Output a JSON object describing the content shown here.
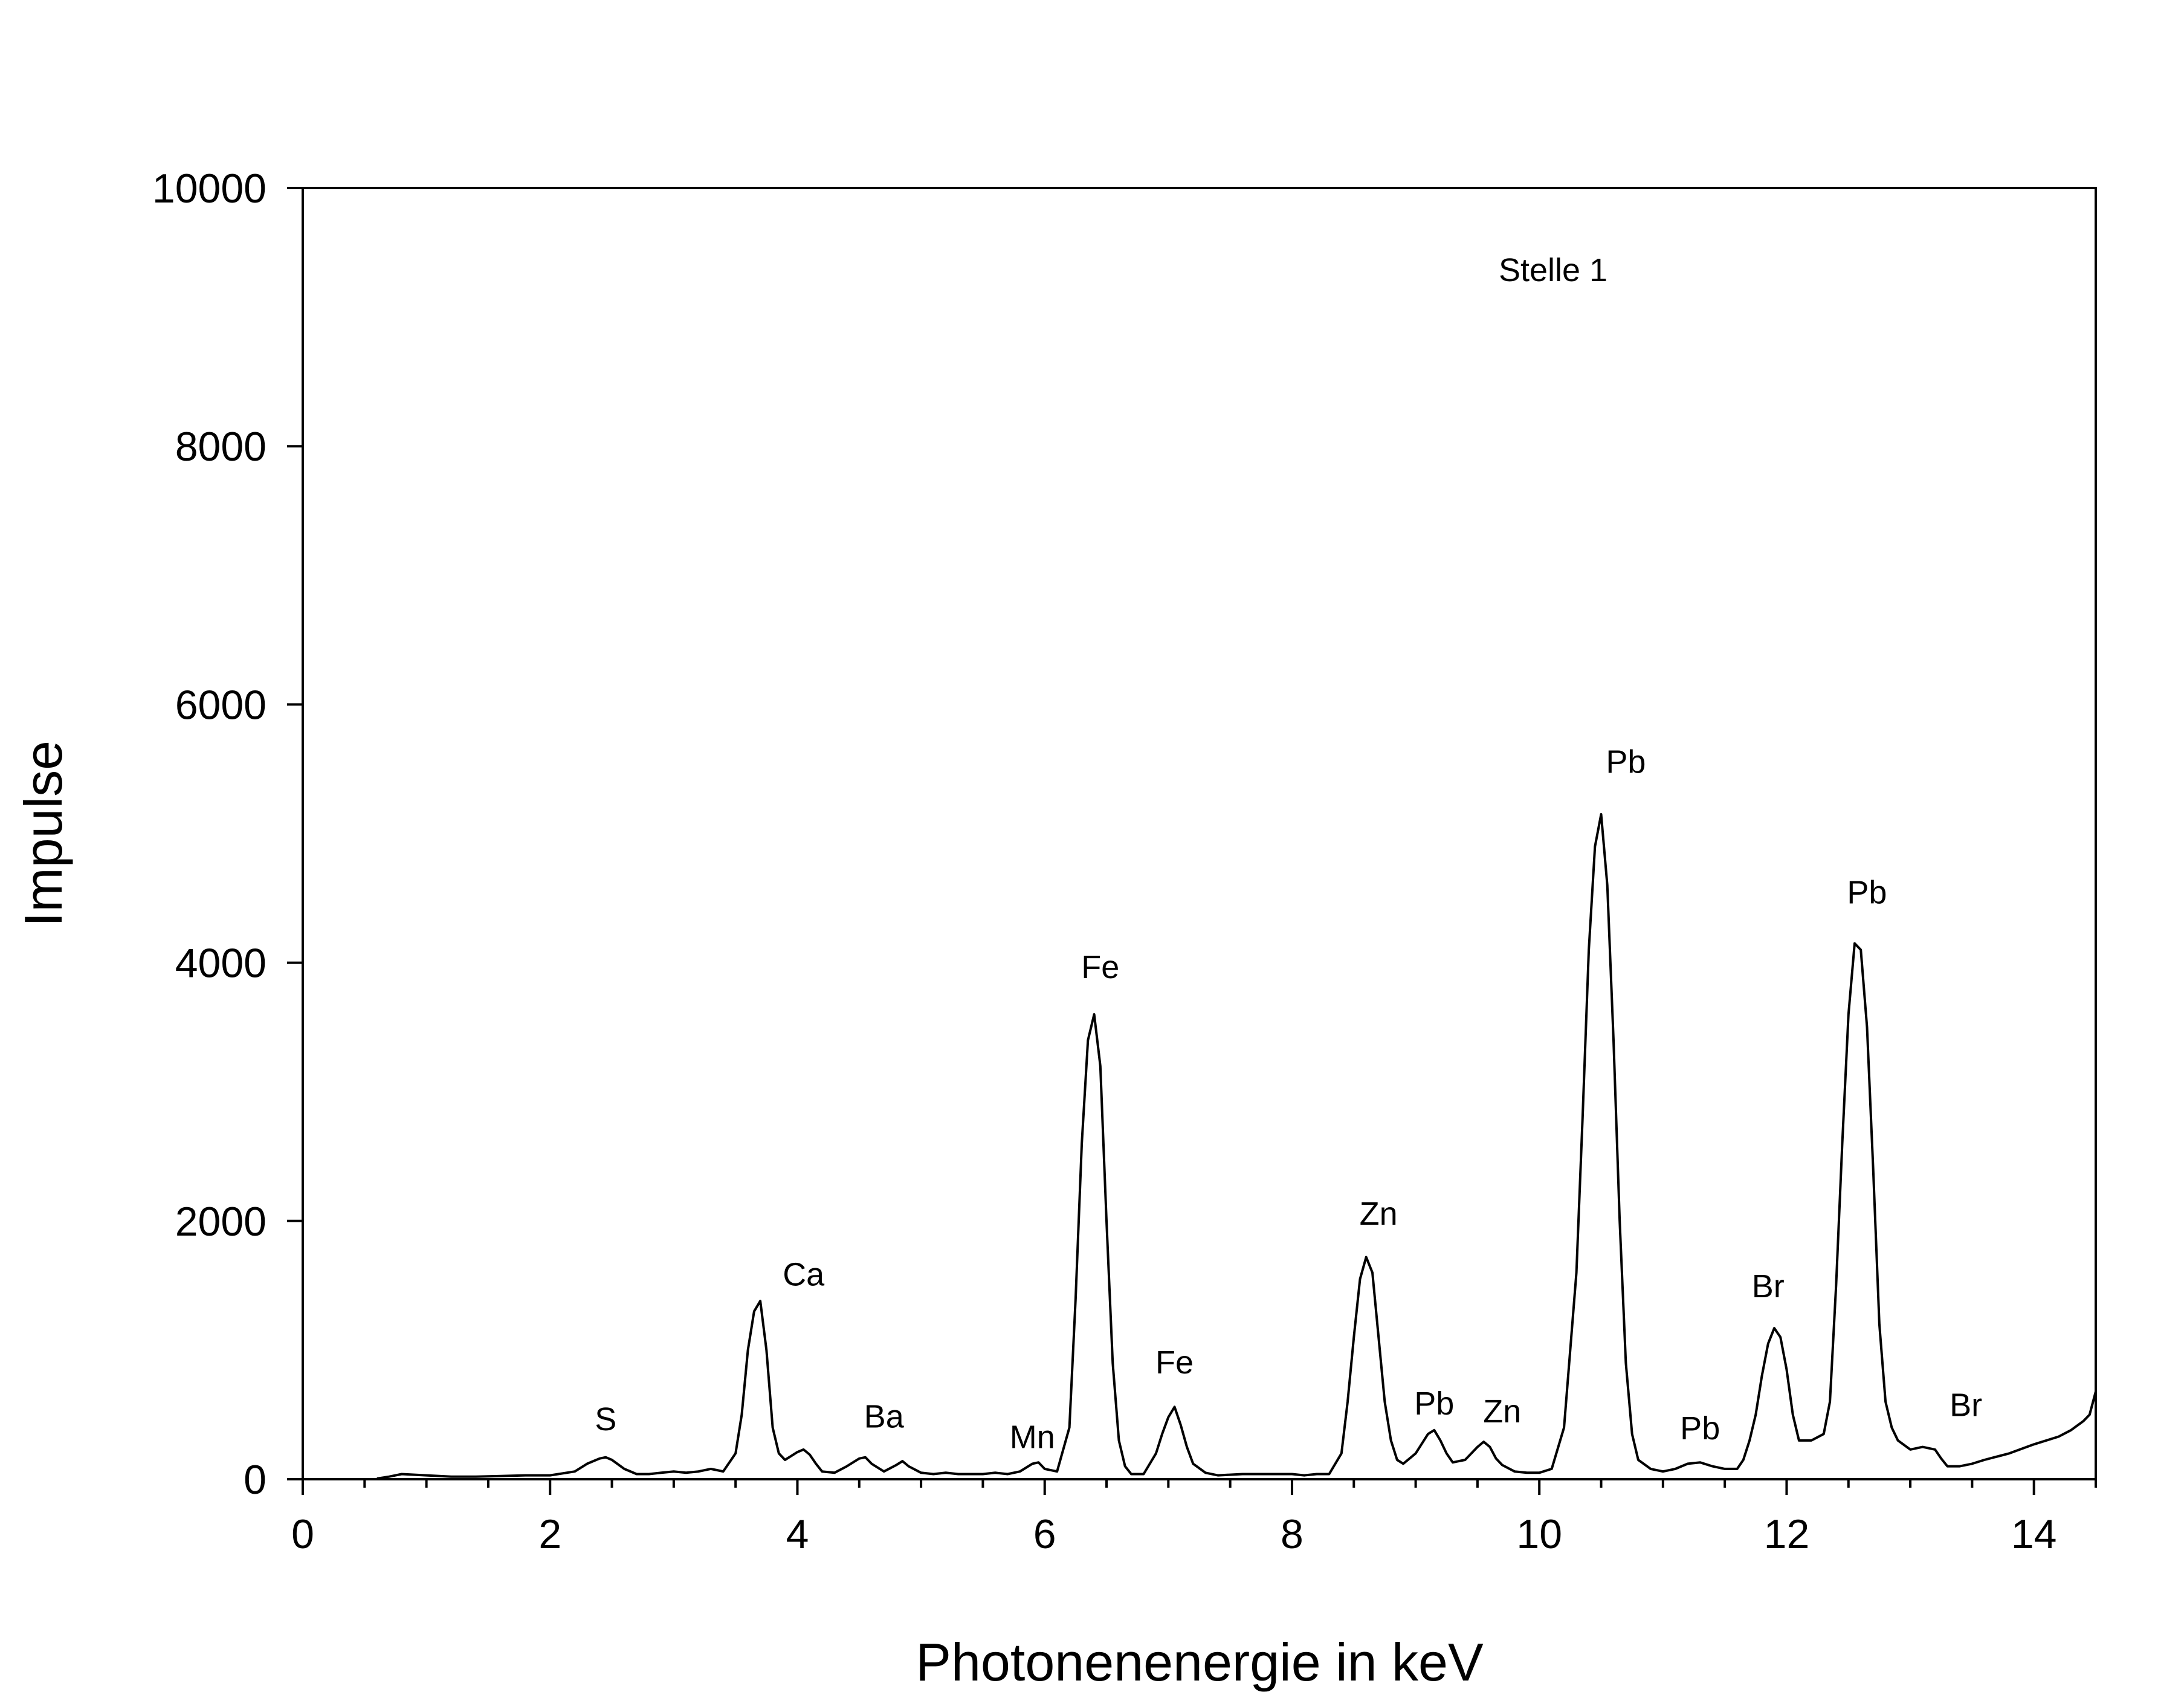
{
  "chart_data": {
    "type": "line",
    "title": "",
    "xlabel": "Photonenenergie in keV",
    "ylabel": "Impulse",
    "xlim": [
      0,
      14.5
    ],
    "ylim": [
      0,
      10000
    ],
    "x_ticks": [
      0,
      2,
      4,
      6,
      8,
      10,
      12,
      14
    ],
    "y_ticks": [
      0,
      2000,
      4000,
      6000,
      8000,
      10000
    ],
    "x_minor_step": 0.5,
    "grid": false,
    "legend": "none",
    "annotation": "Stelle 1",
    "line_color": "#000000",
    "series": [
      {
        "x": [
          0.6,
          0.7,
          0.8,
          1.0,
          1.2,
          1.4,
          1.6,
          1.8,
          2.0,
          2.2,
          2.3,
          2.4,
          2.45,
          2.5,
          2.6,
          2.7,
          2.8,
          2.9,
          3.0,
          3.1,
          3.2,
          3.3,
          3.35,
          3.4,
          3.5,
          3.55,
          3.6,
          3.65,
          3.7,
          3.75,
          3.8,
          3.85,
          3.9,
          3.95,
          4.0,
          4.05,
          4.1,
          4.15,
          4.2,
          4.3,
          4.4,
          4.5,
          4.55,
          4.6,
          4.7,
          4.8,
          4.85,
          4.9,
          5.0,
          5.1,
          5.2,
          5.3,
          5.4,
          5.5,
          5.6,
          5.7,
          5.8,
          5.9,
          5.95,
          6.0,
          6.1,
          6.2,
          6.25,
          6.3,
          6.35,
          6.4,
          6.45,
          6.5,
          6.55,
          6.6,
          6.65,
          6.7,
          6.8,
          6.9,
          6.95,
          7.0,
          7.05,
          7.1,
          7.15,
          7.2,
          7.3,
          7.4,
          7.6,
          7.8,
          8.0,
          8.1,
          8.2,
          8.3,
          8.4,
          8.45,
          8.5,
          8.55,
          8.6,
          8.65,
          8.7,
          8.75,
          8.8,
          8.85,
          8.9,
          9.0,
          9.1,
          9.15,
          9.2,
          9.25,
          9.3,
          9.4,
          9.5,
          9.55,
          9.6,
          9.65,
          9.7,
          9.8,
          9.9,
          10.0,
          10.1,
          10.2,
          10.3,
          10.35,
          10.4,
          10.45,
          10.5,
          10.55,
          10.6,
          10.65,
          10.7,
          10.75,
          10.8,
          10.9,
          11.0,
          11.1,
          11.2,
          11.3,
          11.4,
          11.5,
          11.6,
          11.65,
          11.7,
          11.75,
          11.8,
          11.85,
          11.9,
          11.95,
          12.0,
          12.05,
          12.1,
          12.2,
          12.3,
          12.35,
          12.4,
          12.45,
          12.5,
          12.55,
          12.6,
          12.65,
          12.7,
          12.75,
          12.8,
          12.85,
          12.9,
          13.0,
          13.1,
          13.2,
          13.25,
          13.3,
          13.4,
          13.5,
          13.6,
          13.8,
          14.0,
          14.2,
          14.3,
          14.4,
          14.45,
          14.5
        ],
        "y": [
          5,
          20,
          40,
          30,
          20,
          20,
          25,
          30,
          30,
          60,
          120,
          160,
          170,
          150,
          80,
          40,
          40,
          50,
          60,
          50,
          60,
          80,
          70,
          60,
          200,
          500,
          1000,
          1300,
          1380,
          1000,
          400,
          200,
          150,
          180,
          210,
          230,
          190,
          120,
          60,
          50,
          100,
          160,
          170,
          120,
          60,
          110,
          140,
          100,
          50,
          40,
          50,
          40,
          40,
          40,
          50,
          40,
          60,
          120,
          130,
          80,
          60,
          400,
          1400,
          2600,
          3400,
          3600,
          3200,
          2000,
          900,
          300,
          100,
          40,
          40,
          200,
          350,
          480,
          560,
          420,
          250,
          120,
          50,
          30,
          40,
          40,
          40,
          30,
          40,
          40,
          200,
          600,
          1100,
          1550,
          1720,
          1600,
          1100,
          600,
          300,
          150,
          120,
          200,
          350,
          380,
          300,
          200,
          130,
          150,
          250,
          290,
          250,
          160,
          110,
          60,
          50,
          50,
          80,
          400,
          1600,
          2800,
          4100,
          4900,
          5150,
          4600,
          3400,
          2000,
          900,
          350,
          150,
          80,
          60,
          80,
          120,
          130,
          100,
          80,
          80,
          150,
          300,
          500,
          800,
          1050,
          1170,
          1100,
          850,
          500,
          300,
          300,
          350,
          600,
          1500,
          2600,
          3600,
          4150,
          4100,
          3500,
          2400,
          1200,
          600,
          400,
          300,
          230,
          250,
          230,
          160,
          100,
          100,
          120,
          150,
          200,
          270,
          330,
          380,
          450,
          500,
          680
        ]
      }
    ],
    "peak_labels": [
      {
        "text": "S",
        "x": 2.45,
        "y": 380
      },
      {
        "text": "Ca",
        "x": 4.05,
        "y": 1500
      },
      {
        "text": "Ba",
        "x": 4.7,
        "y": 400
      },
      {
        "text": "Mn",
        "x": 5.9,
        "y": 240
      },
      {
        "text": "Fe",
        "x": 6.45,
        "y": 3880
      },
      {
        "text": "Fe",
        "x": 7.05,
        "y": 820
      },
      {
        "text": "Zn",
        "x": 8.7,
        "y": 1970
      },
      {
        "text": "Pb",
        "x": 9.15,
        "y": 500
      },
      {
        "text": "Zn",
        "x": 9.7,
        "y": 440
      },
      {
        "text": "Pb",
        "x": 10.7,
        "y": 5470
      },
      {
        "text": "Pb",
        "x": 11.3,
        "y": 310
      },
      {
        "text": "Br",
        "x": 11.85,
        "y": 1410
      },
      {
        "text": "Pb",
        "x": 12.65,
        "y": 4460
      },
      {
        "text": "Br",
        "x": 13.45,
        "y": 490
      }
    ]
  }
}
